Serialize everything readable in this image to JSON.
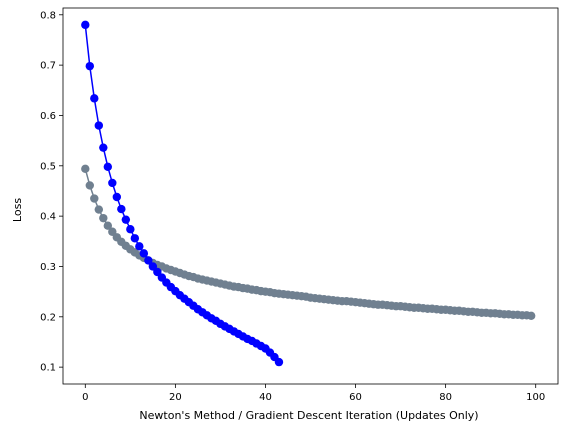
{
  "chart_data": {
    "type": "line",
    "title": "",
    "xlabel": "Newton's Method / Gradient Descent Iteration (Updates Only)",
    "ylabel": "Loss",
    "xlim": [
      -4.95,
      104.95
    ],
    "ylim": [
      0.0665,
      0.8135
    ],
    "grid": false,
    "x_ticks": [
      0,
      20,
      40,
      60,
      80,
      100
    ],
    "y_ticks": [
      0.1,
      0.2,
      0.3,
      0.4,
      0.5,
      0.6,
      0.7,
      0.8
    ],
    "colors": {
      "series_1": "#0000ff",
      "series_2": "#708090"
    },
    "series": [
      {
        "color": "#0000ff",
        "marker": "circle",
        "x": [
          0,
          1,
          2,
          3,
          4,
          5,
          6,
          7,
          8,
          9,
          10,
          11,
          12,
          13,
          14,
          15,
          16,
          17,
          18,
          19,
          20,
          21,
          22,
          23,
          24,
          25,
          26,
          27,
          28,
          29,
          30,
          31,
          32,
          33,
          34,
          35,
          36,
          37,
          38,
          39,
          40,
          41,
          42,
          43
        ],
        "values": [
          0.78,
          0.698,
          0.634,
          0.58,
          0.536,
          0.498,
          0.466,
          0.438,
          0.414,
          0.393,
          0.374,
          0.356,
          0.34,
          0.326,
          0.312,
          0.3,
          0.289,
          0.278,
          0.268,
          0.259,
          0.251,
          0.243,
          0.236,
          0.229,
          0.222,
          0.215,
          0.209,
          0.203,
          0.197,
          0.192,
          0.186,
          0.181,
          0.176,
          0.171,
          0.166,
          0.161,
          0.156,
          0.152,
          0.147,
          0.142,
          0.137,
          0.129,
          0.12,
          0.11
        ]
      },
      {
        "color": "#708090",
        "marker": "circle",
        "x": [
          0,
          1,
          2,
          3,
          4,
          5,
          6,
          7,
          8,
          9,
          10,
          11,
          12,
          13,
          14,
          15,
          16,
          17,
          18,
          19,
          20,
          21,
          22,
          23,
          24,
          25,
          26,
          27,
          28,
          29,
          30,
          31,
          32,
          33,
          34,
          35,
          36,
          37,
          38,
          39,
          40,
          41,
          42,
          43,
          44,
          45,
          46,
          47,
          48,
          49,
          50,
          51,
          52,
          53,
          54,
          55,
          56,
          57,
          58,
          59,
          60,
          61,
          62,
          63,
          64,
          65,
          66,
          67,
          68,
          69,
          70,
          71,
          72,
          73,
          74,
          75,
          76,
          77,
          78,
          79,
          80,
          81,
          82,
          83,
          84,
          85,
          86,
          87,
          88,
          89,
          90,
          91,
          92,
          93,
          94,
          95,
          96,
          97,
          98,
          99
        ],
        "values": [
          0.494,
          0.461,
          0.435,
          0.413,
          0.396,
          0.381,
          0.369,
          0.358,
          0.349,
          0.341,
          0.334,
          0.328,
          0.322,
          0.317,
          0.312,
          0.307,
          0.303,
          0.3,
          0.296,
          0.293,
          0.29,
          0.287,
          0.284,
          0.281,
          0.279,
          0.276,
          0.274,
          0.272,
          0.27,
          0.268,
          0.266,
          0.264,
          0.262,
          0.26,
          0.259,
          0.257,
          0.256,
          0.254,
          0.253,
          0.251,
          0.25,
          0.249,
          0.247,
          0.246,
          0.245,
          0.244,
          0.243,
          0.242,
          0.241,
          0.24,
          0.238,
          0.237,
          0.236,
          0.235,
          0.234,
          0.233,
          0.232,
          0.231,
          0.231,
          0.23,
          0.229,
          0.228,
          0.227,
          0.226,
          0.225,
          0.224,
          0.224,
          0.223,
          0.222,
          0.221,
          0.221,
          0.22,
          0.219,
          0.218,
          0.218,
          0.217,
          0.216,
          0.216,
          0.215,
          0.214,
          0.214,
          0.213,
          0.212,
          0.212,
          0.211,
          0.21,
          0.21,
          0.209,
          0.208,
          0.208,
          0.207,
          0.207,
          0.206,
          0.205,
          0.205,
          0.204,
          0.204,
          0.203,
          0.203,
          0.202
        ]
      }
    ]
  }
}
